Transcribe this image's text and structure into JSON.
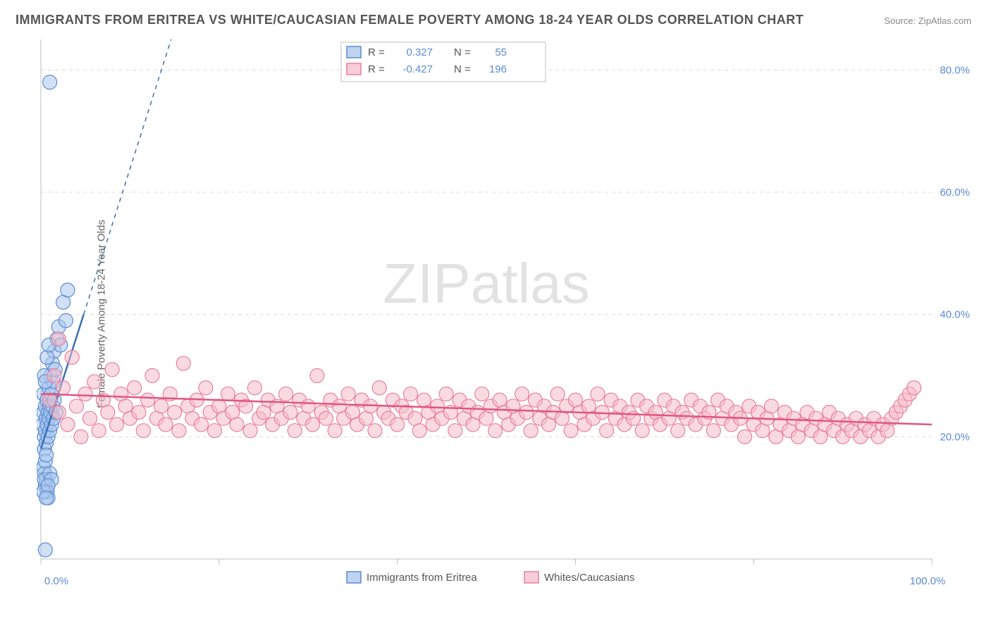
{
  "title": "IMMIGRANTS FROM ERITREA VS WHITE/CAUCASIAN FEMALE POVERTY AMONG 18-24 YEAR OLDS CORRELATION CHART",
  "source_label": "Source:",
  "source_name": "ZipAtlas.com",
  "ylabel": "Female Poverty Among 18-24 Year Olds",
  "watermark_a": "ZIP",
  "watermark_b": "atlas",
  "chart": {
    "type": "scatter",
    "xlim": [
      0,
      100
    ],
    "ylim": [
      0,
      85
    ],
    "ytick_values": [
      20,
      40,
      60,
      80
    ],
    "ytick_labels": [
      "20.0%",
      "40.0%",
      "60.0%",
      "80.0%"
    ],
    "xtick_values": [
      0,
      20,
      40,
      60,
      80,
      100
    ],
    "xtick_corner_labels": [
      "0.0%",
      "100.0%"
    ],
    "background_color": "#ffffff",
    "grid_color": "#dcdcdc",
    "axis_color": "#bfbfbf"
  },
  "series": [
    {
      "key": "eritrea",
      "label": "Immigrants from Eritrea",
      "color_fill": "#a9c6ec",
      "color_stroke": "#5b8bd4",
      "fill_opacity": 0.55,
      "marker_radius": 10,
      "R": "0.327",
      "N": "55",
      "trend": {
        "x1": 0,
        "y1": 18,
        "x2": 4.8,
        "y2": 40,
        "extend_dashed": true,
        "color": "#3b6fb5"
      },
      "points": [
        [
          0.2,
          22
        ],
        [
          0.3,
          24
        ],
        [
          0.4,
          20
        ],
        [
          0.3,
          27
        ],
        [
          0.5,
          25
        ],
        [
          0.4,
          18
        ],
        [
          0.6,
          23
        ],
        [
          0.5,
          21
        ],
        [
          0.7,
          26
        ],
        [
          0.6,
          19
        ],
        [
          0.8,
          24
        ],
        [
          0.7,
          22
        ],
        [
          0.9,
          28
        ],
        [
          0.8,
          20
        ],
        [
          1.0,
          25
        ],
        [
          0.9,
          23
        ],
        [
          1.1,
          30
        ],
        [
          1.0,
          21
        ],
        [
          1.2,
          27
        ],
        [
          1.1,
          24
        ],
        [
          1.3,
          32
        ],
        [
          1.2,
          22
        ],
        [
          1.4,
          29
        ],
        [
          1.3,
          25
        ],
        [
          1.5,
          34
        ],
        [
          1.4,
          23
        ],
        [
          1.6,
          31
        ],
        [
          1.5,
          26
        ],
        [
          1.8,
          36
        ],
        [
          1.7,
          24
        ],
        [
          0.3,
          15
        ],
        [
          0.4,
          14
        ],
        [
          0.5,
          12
        ],
        [
          0.6,
          13
        ],
        [
          0.7,
          11
        ],
        [
          0.8,
          10
        ],
        [
          0.5,
          16
        ],
        [
          0.6,
          17
        ],
        [
          0.4,
          13
        ],
        [
          0.3,
          11
        ],
        [
          2.0,
          38
        ],
        [
          2.2,
          35
        ],
        [
          2.5,
          42
        ],
        [
          2.8,
          39
        ],
        [
          3.0,
          44
        ],
        [
          1.0,
          14
        ],
        [
          1.2,
          13
        ],
        [
          0.8,
          12
        ],
        [
          0.6,
          10
        ],
        [
          1.0,
          78
        ],
        [
          0.5,
          1.5
        ],
        [
          0.4,
          30
        ],
        [
          0.7,
          33
        ],
        [
          0.9,
          35
        ],
        [
          0.5,
          29
        ]
      ]
    },
    {
      "key": "white",
      "label": "Whites/Caucasians",
      "color_fill": "#f6bcc9",
      "color_stroke": "#e97f9d",
      "fill_opacity": 0.55,
      "marker_radius": 10,
      "R": "-0.427",
      "N": "196",
      "trend": {
        "x1": 0,
        "y1": 27,
        "x2": 100,
        "y2": 22,
        "extend_dashed": false,
        "color": "#e15582"
      },
      "points": [
        [
          1,
          26
        ],
        [
          1.5,
          30
        ],
        [
          2,
          24
        ],
        [
          2.5,
          28
        ],
        [
          3,
          22
        ],
        [
          3.5,
          33
        ],
        [
          4,
          25
        ],
        [
          4.5,
          20
        ],
        [
          5,
          27
        ],
        [
          5.5,
          23
        ],
        [
          6,
          29
        ],
        [
          6.5,
          21
        ],
        [
          7,
          26
        ],
        [
          7.5,
          24
        ],
        [
          8,
          31
        ],
        [
          8.5,
          22
        ],
        [
          9,
          27
        ],
        [
          9.5,
          25
        ],
        [
          10,
          23
        ],
        [
          10.5,
          28
        ],
        [
          11,
          24
        ],
        [
          11.5,
          21
        ],
        [
          12,
          26
        ],
        [
          12.5,
          30
        ],
        [
          13,
          23
        ],
        [
          13.5,
          25
        ],
        [
          14,
          22
        ],
        [
          14.5,
          27
        ],
        [
          15,
          24
        ],
        [
          15.5,
          21
        ],
        [
          16,
          32
        ],
        [
          16.5,
          25
        ],
        [
          17,
          23
        ],
        [
          17.5,
          26
        ],
        [
          18,
          22
        ],
        [
          18.5,
          28
        ],
        [
          19,
          24
        ],
        [
          19.5,
          21
        ],
        [
          20,
          25
        ],
        [
          20.5,
          23
        ],
        [
          21,
          27
        ],
        [
          21.5,
          24
        ],
        [
          22,
          22
        ],
        [
          22.5,
          26
        ],
        [
          23,
          25
        ],
        [
          23.5,
          21
        ],
        [
          24,
          28
        ],
        [
          24.5,
          23
        ],
        [
          25,
          24
        ],
        [
          25.5,
          26
        ],
        [
          26,
          22
        ],
        [
          26.5,
          25
        ],
        [
          27,
          23
        ],
        [
          27.5,
          27
        ],
        [
          28,
          24
        ],
        [
          28.5,
          21
        ],
        [
          29,
          26
        ],
        [
          29.5,
          23
        ],
        [
          30,
          25
        ],
        [
          30.5,
          22
        ],
        [
          31,
          30
        ],
        [
          31.5,
          24
        ],
        [
          32,
          23
        ],
        [
          32.5,
          26
        ],
        [
          33,
          21
        ],
        [
          33.5,
          25
        ],
        [
          34,
          23
        ],
        [
          34.5,
          27
        ],
        [
          35,
          24
        ],
        [
          35.5,
          22
        ],
        [
          36,
          26
        ],
        [
          36.5,
          23
        ],
        [
          37,
          25
        ],
        [
          37.5,
          21
        ],
        [
          38,
          28
        ],
        [
          38.5,
          24
        ],
        [
          39,
          23
        ],
        [
          39.5,
          26
        ],
        [
          40,
          22
        ],
        [
          40.5,
          25
        ],
        [
          41,
          24
        ],
        [
          41.5,
          27
        ],
        [
          42,
          23
        ],
        [
          42.5,
          21
        ],
        [
          43,
          26
        ],
        [
          43.5,
          24
        ],
        [
          44,
          22
        ],
        [
          44.5,
          25
        ],
        [
          45,
          23
        ],
        [
          45.5,
          27
        ],
        [
          46,
          24
        ],
        [
          46.5,
          21
        ],
        [
          47,
          26
        ],
        [
          47.5,
          23
        ],
        [
          48,
          25
        ],
        [
          48.5,
          22
        ],
        [
          49,
          24
        ],
        [
          49.5,
          27
        ],
        [
          50,
          23
        ],
        [
          50.5,
          25
        ],
        [
          51,
          21
        ],
        [
          51.5,
          26
        ],
        [
          52,
          24
        ],
        [
          52.5,
          22
        ],
        [
          53,
          25
        ],
        [
          53.5,
          23
        ],
        [
          54,
          27
        ],
        [
          54.5,
          24
        ],
        [
          55,
          21
        ],
        [
          55.5,
          26
        ],
        [
          56,
          23
        ],
        [
          56.5,
          25
        ],
        [
          57,
          22
        ],
        [
          57.5,
          24
        ],
        [
          58,
          27
        ],
        [
          58.5,
          23
        ],
        [
          59,
          25
        ],
        [
          59.5,
          21
        ],
        [
          60,
          26
        ],
        [
          60.5,
          24
        ],
        [
          61,
          22
        ],
        [
          61.5,
          25
        ],
        [
          62,
          23
        ],
        [
          62.5,
          27
        ],
        [
          63,
          24
        ],
        [
          63.5,
          21
        ],
        [
          64,
          26
        ],
        [
          64.5,
          23
        ],
        [
          65,
          25
        ],
        [
          65.5,
          22
        ],
        [
          66,
          24
        ],
        [
          66.5,
          23
        ],
        [
          67,
          26
        ],
        [
          67.5,
          21
        ],
        [
          68,
          25
        ],
        [
          68.5,
          23
        ],
        [
          69,
          24
        ],
        [
          69.5,
          22
        ],
        [
          70,
          26
        ],
        [
          70.5,
          23
        ],
        [
          71,
          25
        ],
        [
          71.5,
          21
        ],
        [
          72,
          24
        ],
        [
          72.5,
          23
        ],
        [
          73,
          26
        ],
        [
          73.5,
          22
        ],
        [
          74,
          25
        ],
        [
          74.5,
          23
        ],
        [
          75,
          24
        ],
        [
          75.5,
          21
        ],
        [
          76,
          26
        ],
        [
          76.5,
          23
        ],
        [
          77,
          25
        ],
        [
          77.5,
          22
        ],
        [
          78,
          24
        ],
        [
          78.5,
          23
        ],
        [
          79,
          20
        ],
        [
          79.5,
          25
        ],
        [
          80,
          22
        ],
        [
          80.5,
          24
        ],
        [
          81,
          21
        ],
        [
          81.5,
          23
        ],
        [
          82,
          25
        ],
        [
          82.5,
          20
        ],
        [
          83,
          22
        ],
        [
          83.5,
          24
        ],
        [
          84,
          21
        ],
        [
          84.5,
          23
        ],
        [
          85,
          20
        ],
        [
          85.5,
          22
        ],
        [
          86,
          24
        ],
        [
          86.5,
          21
        ],
        [
          87,
          23
        ],
        [
          87.5,
          20
        ],
        [
          88,
          22
        ],
        [
          88.5,
          24
        ],
        [
          89,
          21
        ],
        [
          89.5,
          23
        ],
        [
          90,
          20
        ],
        [
          90.5,
          22
        ],
        [
          91,
          21
        ],
        [
          91.5,
          23
        ],
        [
          92,
          20
        ],
        [
          92.5,
          22
        ],
        [
          93,
          21
        ],
        [
          93.5,
          23
        ],
        [
          94,
          20
        ],
        [
          94.5,
          22
        ],
        [
          95,
          21
        ],
        [
          95.5,
          23
        ],
        [
          96,
          24
        ],
        [
          96.5,
          25
        ],
        [
          97,
          26
        ],
        [
          97.5,
          27
        ],
        [
          98,
          28
        ],
        [
          2,
          36
        ]
      ]
    }
  ],
  "legend_top": {
    "r_label": "R  =",
    "n_label": "N  ="
  },
  "legend_bottom_items": [
    {
      "key": "eritrea",
      "label": "Immigrants from Eritrea"
    },
    {
      "key": "white",
      "label": "Whites/Caucasians"
    }
  ]
}
